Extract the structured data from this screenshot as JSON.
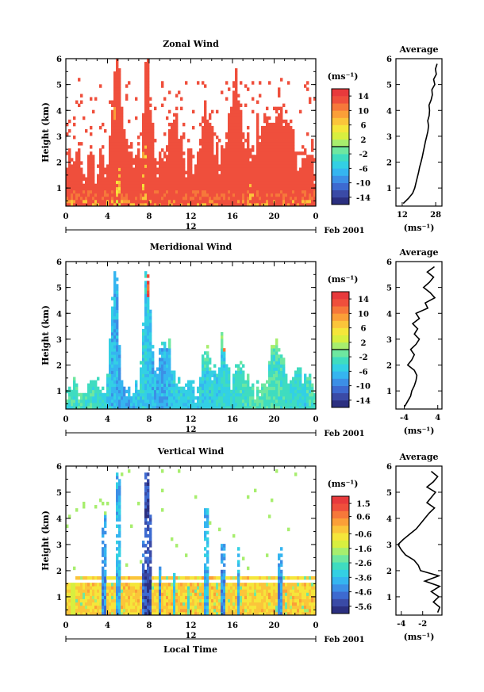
{
  "figure": {
    "xlabel": "Local Time",
    "date_label": "Feb 2001",
    "date_marker": "12"
  },
  "chart_data": [
    {
      "type": "heatmap",
      "title": "Zonal Wind",
      "ylabel": "Height (km)",
      "xlabel": "Local Time",
      "x_ticks": [
        "0",
        "4",
        "8",
        "12",
        "16",
        "20",
        "0"
      ],
      "x_range": [
        0,
        24
      ],
      "y_ticks": [
        "1",
        "2",
        "3",
        "4",
        "5",
        "6"
      ],
      "y_range": [
        0.3,
        6
      ],
      "colorbar": {
        "unit": "(ms⁻¹)",
        "ticks": [
          "14",
          "10",
          "6",
          "2",
          "-2",
          "-6",
          "-10",
          "-14"
        ],
        "range": [
          -16,
          16
        ]
      },
      "palette": [
        "#2b2f80",
        "#3a4aa6",
        "#3d6ad0",
        "#3c8fe6",
        "#35b5f0",
        "#33d0e4",
        "#3fdcc0",
        "#6ee7a0",
        "#a7ee6e",
        "#d8ef3f",
        "#f5e63a",
        "#fbc53a",
        "#fb9f38",
        "#f6783a",
        "#ef4f3c",
        "#e83a3c"
      ],
      "pattern": "zonal",
      "average": {
        "title": "Average",
        "x_ticks": [
          "12",
          "28"
        ],
        "x_range": [
          9,
          31
        ],
        "unit": "(ms⁻¹)",
        "heights": [
          0.4,
          0.6,
          0.8,
          1.0,
          1.2,
          1.4,
          1.6,
          1.8,
          2.0,
          2.2,
          2.4,
          2.6,
          2.8,
          3.0,
          3.2,
          3.4,
          3.6,
          3.8,
          4.0,
          4.2,
          4.4,
          4.6,
          4.8,
          5.0,
          5.2,
          5.4,
          5.6,
          5.8
        ],
        "values": [
          12.5,
          15,
          17,
          18,
          18.6,
          19.2,
          19.8,
          20.3,
          21,
          21.6,
          22.1,
          22.6,
          23.1,
          23.7,
          24.3,
          24.6,
          24.2,
          24.9,
          25.1,
          24.8,
          25.8,
          26.4,
          26.2,
          27.6,
          27.0,
          28.3,
          27.9,
          28.7
        ]
      }
    },
    {
      "type": "heatmap",
      "title": "Meridional Wind",
      "ylabel": "Height (km)",
      "xlabel": "Local Time",
      "x_ticks": [
        "0",
        "4",
        "8",
        "12",
        "16",
        "20",
        "0"
      ],
      "x_range": [
        0,
        24
      ],
      "y_ticks": [
        "1",
        "2",
        "3",
        "4",
        "5",
        "6"
      ],
      "y_range": [
        0.3,
        6
      ],
      "colorbar": {
        "unit": "(ms⁻¹)",
        "ticks": [
          "14",
          "10",
          "6",
          "2",
          "-2",
          "-6",
          "-10",
          "-14"
        ],
        "range": [
          -16,
          16
        ]
      },
      "palette": [
        "#2b2f80",
        "#3a4aa6",
        "#3d6ad0",
        "#3c8fe6",
        "#35b5f0",
        "#33d0e4",
        "#3fdcc0",
        "#6ee7a0",
        "#a7ee6e",
        "#d8ef3f",
        "#f5e63a",
        "#fbc53a",
        "#fb9f38",
        "#f6783a",
        "#ef4f3c",
        "#e83a3c"
      ],
      "pattern": "meridional",
      "average": {
        "title": "Average",
        "x_ticks": [
          "-4",
          "4"
        ],
        "x_range": [
          -6,
          5
        ],
        "unit": "(ms⁻¹)",
        "heights": [
          0.4,
          0.6,
          0.8,
          1.0,
          1.2,
          1.4,
          1.6,
          1.8,
          2.0,
          2.2,
          2.4,
          2.6,
          2.8,
          3.0,
          3.2,
          3.4,
          3.6,
          3.8,
          4.0,
          4.2,
          4.4,
          4.6,
          4.8,
          5.0,
          5.2,
          5.4,
          5.6,
          5.8
        ],
        "values": [
          -3.9,
          -3.2,
          -2.5,
          -2.2,
          -1.6,
          -1.2,
          -1.0,
          -1.6,
          -3.2,
          -2.2,
          -1.6,
          -2.5,
          -1.2,
          -0.4,
          -1.6,
          -0.8,
          -2.0,
          -0.4,
          -1.2,
          1.6,
          1.0,
          3.3,
          2.2,
          0.6,
          2.0,
          3.0,
          1.5,
          3.2
        ]
      }
    },
    {
      "type": "heatmap",
      "title": "Vertical Wind",
      "ylabel": "Height (km)",
      "xlabel": "Local Time",
      "x_ticks": [
        "0",
        "4",
        "8",
        "12",
        "16",
        "20",
        "0"
      ],
      "x_range": [
        0,
        24
      ],
      "y_ticks": [
        "1",
        "2",
        "3",
        "4",
        "5",
        "6"
      ],
      "y_range": [
        0.3,
        6
      ],
      "colorbar": {
        "unit": "(ms⁻¹)",
        "ticks": [
          "1.5",
          "0.6",
          "-0.6",
          "-1.6",
          "-2.6",
          "-3.6",
          "-4.6",
          "-5.6"
        ],
        "range": [
          -6.1,
          2.0
        ]
      },
      "palette": [
        "#2b2f80",
        "#3a4aa6",
        "#3d6ad0",
        "#3c8fe6",
        "#35b5f0",
        "#33d0e4",
        "#3fdcc0",
        "#6ee7a0",
        "#a7ee6e",
        "#d8ef3f",
        "#f5e63a",
        "#fbc53a",
        "#fb9f38",
        "#f6783a",
        "#ef4f3c",
        "#e83a3c"
      ],
      "pattern": "vertical",
      "average": {
        "title": "Average",
        "x_ticks": [
          "-4",
          "-2"
        ],
        "x_range": [
          -4.5,
          -0.2
        ],
        "unit": "(ms⁻¹)",
        "heights": [
          0.4,
          0.6,
          0.8,
          1.0,
          1.2,
          1.4,
          1.6,
          1.8,
          2.0,
          2.2,
          2.4,
          2.6,
          2.8,
          3.0,
          3.2,
          3.4,
          3.6,
          3.8,
          4.0,
          4.2,
          4.4,
          4.6,
          4.8,
          5.0,
          5.2,
          5.4,
          5.6,
          5.8
        ],
        "values": [
          -0.6,
          -0.4,
          -1.0,
          -0.5,
          -1.2,
          -0.4,
          -1.8,
          -0.5,
          -2.2,
          -2.4,
          -2.8,
          -3.6,
          -4.0,
          -4.3,
          -3.8,
          -3.2,
          -2.6,
          -2.2,
          -1.8,
          -1.4,
          -0.9,
          -1.6,
          -1.2,
          -0.8,
          -1.6,
          -1.0,
          -0.6,
          -1.2
        ]
      }
    }
  ]
}
